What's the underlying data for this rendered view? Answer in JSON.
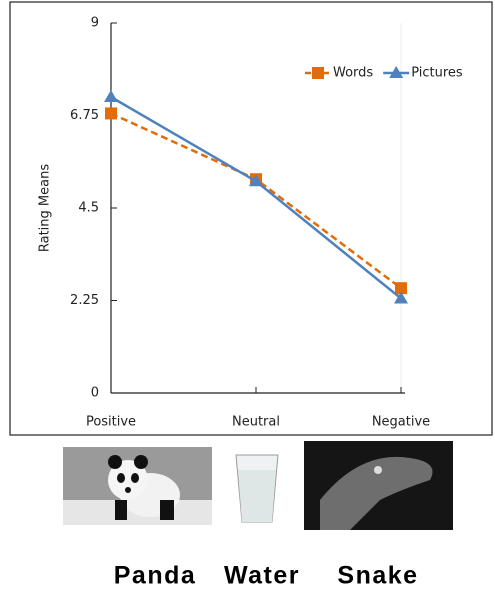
{
  "chart_data": {
    "type": "line",
    "y_label": "Rating Means",
    "categories": [
      "Positive",
      "Neutral",
      "Negative"
    ],
    "series": [
      {
        "name": "Words",
        "color": "#e36c09",
        "values": [
          6.8,
          5.2,
          2.55
        ],
        "dashed": true,
        "marker": "square"
      },
      {
        "name": "Pictures",
        "color": "#4f81bd",
        "values": [
          7.2,
          5.15,
          2.3
        ],
        "dashed": false,
        "marker": "triangle"
      }
    ],
    "ylim": [
      0,
      9
    ],
    "yticks": [
      0,
      2.25,
      4.5,
      6.75,
      9
    ],
    "grid": false,
    "legend": "upper right"
  },
  "captions": [
    "Panda",
    "Water",
    "Snake"
  ]
}
